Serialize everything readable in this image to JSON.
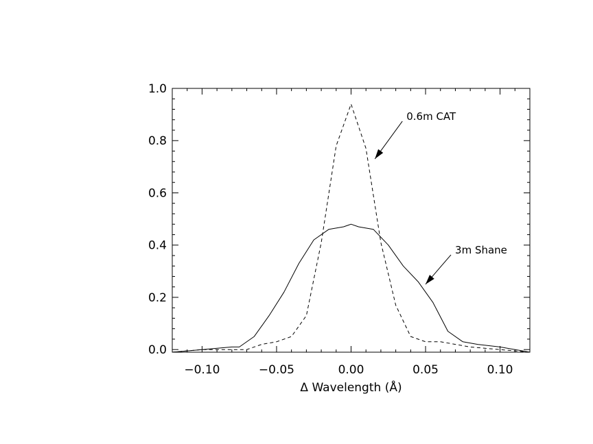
{
  "chart_data": {
    "type": "line",
    "title": "",
    "xlabel": "Δ Wavelength (Å)",
    "ylabel": "",
    "xlim": [
      -0.12,
      0.12
    ],
    "ylim": [
      -0.01,
      1.0
    ],
    "x_ticks": [
      -0.1,
      -0.05,
      0.0,
      0.05,
      0.1
    ],
    "x_tick_labels": [
      "−0.10",
      "−0.05",
      "0.00",
      "0.05",
      "0.10"
    ],
    "x_minor_step": 0.01,
    "y_ticks": [
      0.0,
      0.2,
      0.4,
      0.6,
      0.8,
      1.0
    ],
    "y_tick_labels": [
      "0.0",
      "0.2",
      "0.4",
      "0.6",
      "0.8",
      "1.0"
    ],
    "y_minor_step": 0.04,
    "grid": false,
    "series": [
      {
        "name": "0.6m CAT",
        "line_style": "dashed",
        "color": "#000000",
        "x": [
          -0.12,
          -0.1,
          -0.08,
          -0.07,
          -0.06,
          -0.05,
          -0.04,
          -0.03,
          -0.02,
          -0.01,
          0.0,
          0.01,
          0.02,
          0.03,
          0.04,
          0.05,
          0.06,
          0.07,
          0.08,
          0.1,
          0.12
        ],
        "y": [
          -0.01,
          0.0,
          0.0,
          0.0,
          0.02,
          0.03,
          0.05,
          0.13,
          0.41,
          0.78,
          0.94,
          0.77,
          0.41,
          0.17,
          0.05,
          0.03,
          0.03,
          0.02,
          0.01,
          0.0,
          -0.01
        ]
      },
      {
        "name": "3m Shane",
        "line_style": "solid",
        "color": "#000000",
        "x": [
          -0.12,
          -0.1,
          -0.08,
          -0.075,
          -0.065,
          -0.055,
          -0.045,
          -0.035,
          -0.025,
          -0.015,
          -0.005,
          0.0,
          0.005,
          0.015,
          0.025,
          0.035,
          0.045,
          0.055,
          0.065,
          0.075,
          0.085,
          0.1,
          0.12
        ],
        "y": [
          -0.01,
          0.0,
          0.01,
          0.01,
          0.05,
          0.13,
          0.22,
          0.33,
          0.42,
          0.46,
          0.47,
          0.48,
          0.47,
          0.46,
          0.4,
          0.32,
          0.26,
          0.18,
          0.07,
          0.03,
          0.02,
          0.01,
          -0.01
        ]
      }
    ],
    "annotations": [
      {
        "text": "0.6m CAT",
        "series": "0.6m CAT",
        "arrow_to_x": 0.016,
        "arrow_to_y": 0.73
      },
      {
        "text": "3m Shane",
        "series": "3m Shane",
        "arrow_to_x": 0.05,
        "arrow_to_y": 0.25
      }
    ]
  }
}
